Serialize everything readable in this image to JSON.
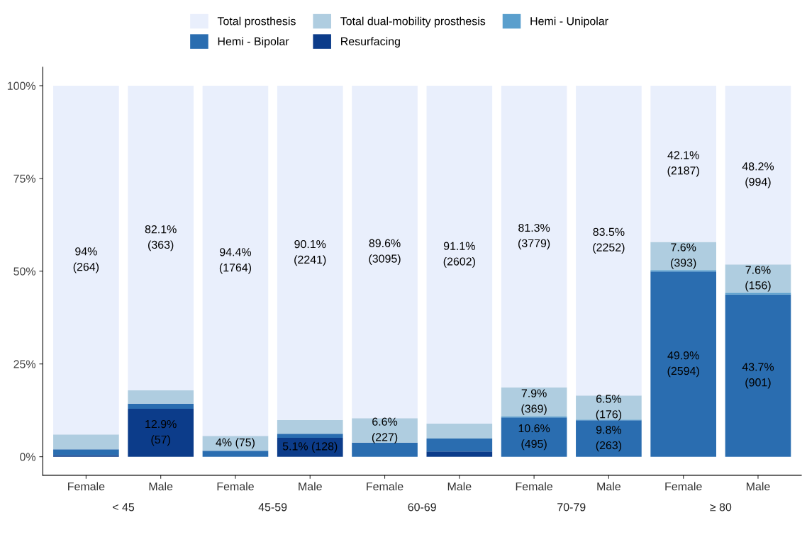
{
  "chart_data": {
    "type": "bar",
    "stacked": true,
    "legend": "top",
    "categories": [
      "Female",
      "Male",
      "Female",
      "Male",
      "Female",
      "Male",
      "Female",
      "Male",
      "Female",
      "Male"
    ],
    "annotations": [
      "< 45",
      "45-59",
      "60-69",
      "70-79",
      "≥ 80"
    ],
    "ylim": [
      -5,
      105
    ],
    "yticks": [
      {
        "value": 0,
        "label": "0%"
      },
      {
        "value": 25,
        "label": "25%"
      },
      {
        "value": 50,
        "label": "50%"
      },
      {
        "value": 75,
        "label": "75%"
      },
      {
        "value": 100,
        "label": "100%"
      }
    ],
    "series": [
      {
        "name": "Resurfacing",
        "color": "#0c3c8a",
        "values": [
          0.4,
          12.9,
          0,
          5.1,
          0,
          1.4,
          0,
          0,
          0,
          0
        ],
        "value_labels": [
          null,
          "12.9%\n(57)",
          null,
          "5.1% (128)",
          null,
          null,
          null,
          null,
          null,
          null
        ]
      },
      {
        "name": "Hemi - Bipolar",
        "color": "#2a6db0",
        "values": [
          1.6,
          1.4,
          1.6,
          1.1,
          3.8,
          3.5,
          10.6,
          9.8,
          49.9,
          43.7
        ],
        "value_labels": [
          null,
          null,
          null,
          null,
          null,
          null,
          "10.6%\n(495)",
          "9.8%\n(263)",
          "49.9%\n(2594)",
          "43.7%\n(901)"
        ]
      },
      {
        "name": "Hemi - Unipolar",
        "color": "#5a9fcd",
        "values": [
          0,
          0,
          0,
          0,
          0,
          0,
          0.2,
          0.2,
          0.4,
          0.5
        ],
        "value_labels": [
          null,
          null,
          null,
          null,
          null,
          null,
          null,
          null,
          null,
          null
        ]
      },
      {
        "name": "Total dual-mobility prosthesis",
        "color": "#afcde0",
        "values": [
          4.0,
          3.6,
          4.0,
          3.7,
          6.6,
          4.0,
          7.9,
          6.5,
          7.6,
          7.6
        ],
        "value_labels": [
          null,
          null,
          "4% (75)",
          null,
          "6.6%\n(227)",
          null,
          "7.9%\n(369)",
          "6.5%\n(176)",
          "7.6%\n(393)",
          "7.6%\n(156)"
        ]
      },
      {
        "name": "Total prosthesis",
        "color": "#e9effc",
        "values": [
          94,
          82.1,
          94.4,
          90.1,
          89.6,
          91.1,
          81.3,
          83.5,
          42.1,
          48.2
        ],
        "value_labels": [
          "94%\n(264)",
          "82.1%\n(363)",
          "94.4%\n(1764)",
          "90.1%\n(2241)",
          "89.6%\n(3095)",
          "91.1%\n(2602)",
          "81.3%\n(3779)",
          "83.5%\n(2252)",
          "42.1%\n(2187)",
          "48.2%\n(994)"
        ]
      }
    ]
  }
}
